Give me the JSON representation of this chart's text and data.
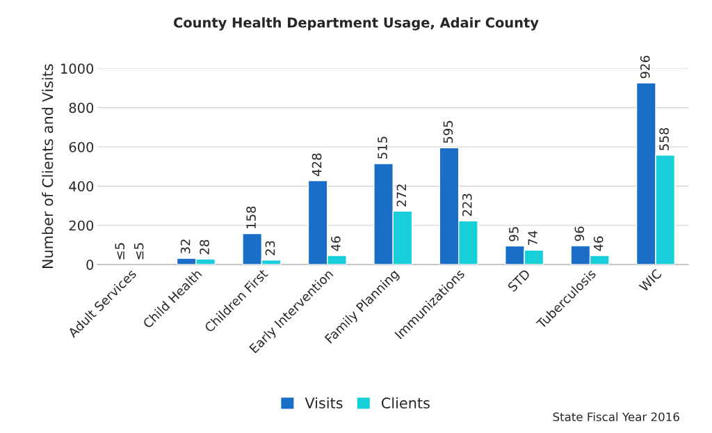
{
  "chart_data": {
    "type": "bar",
    "title": "County Health Department Usage, Adair County",
    "ylabel": "Number of Clients and Visits",
    "categories": [
      "Adult Services",
      "Child Health",
      "Children First",
      "Early Intervention",
      "Family Planning",
      "Immunizations",
      "STD",
      "Tuberculosis",
      "WIC"
    ],
    "series": [
      {
        "name": "Visits",
        "color": "#1a6ec8",
        "values": [
          null,
          32,
          158,
          428,
          515,
          595,
          95,
          96,
          926
        ],
        "value_labels": [
          "≤5",
          "32",
          "158",
          "428",
          "515",
          "595",
          "95",
          "96",
          "926"
        ]
      },
      {
        "name": "Clients",
        "color": "#16cfd9",
        "values": [
          null,
          28,
          23,
          46,
          272,
          223,
          74,
          46,
          558
        ],
        "value_labels": [
          "≤5",
          "28",
          "23",
          "46",
          "272",
          "223",
          "74",
          "46",
          "558"
        ]
      }
    ],
    "ylim": [
      0,
      1000
    ],
    "yticks": [
      0,
      200,
      400,
      600,
      800,
      1000
    ],
    "grid": "y",
    "legend": "bottom",
    "annotations": [
      "State Fiscal Year 2016"
    ]
  }
}
